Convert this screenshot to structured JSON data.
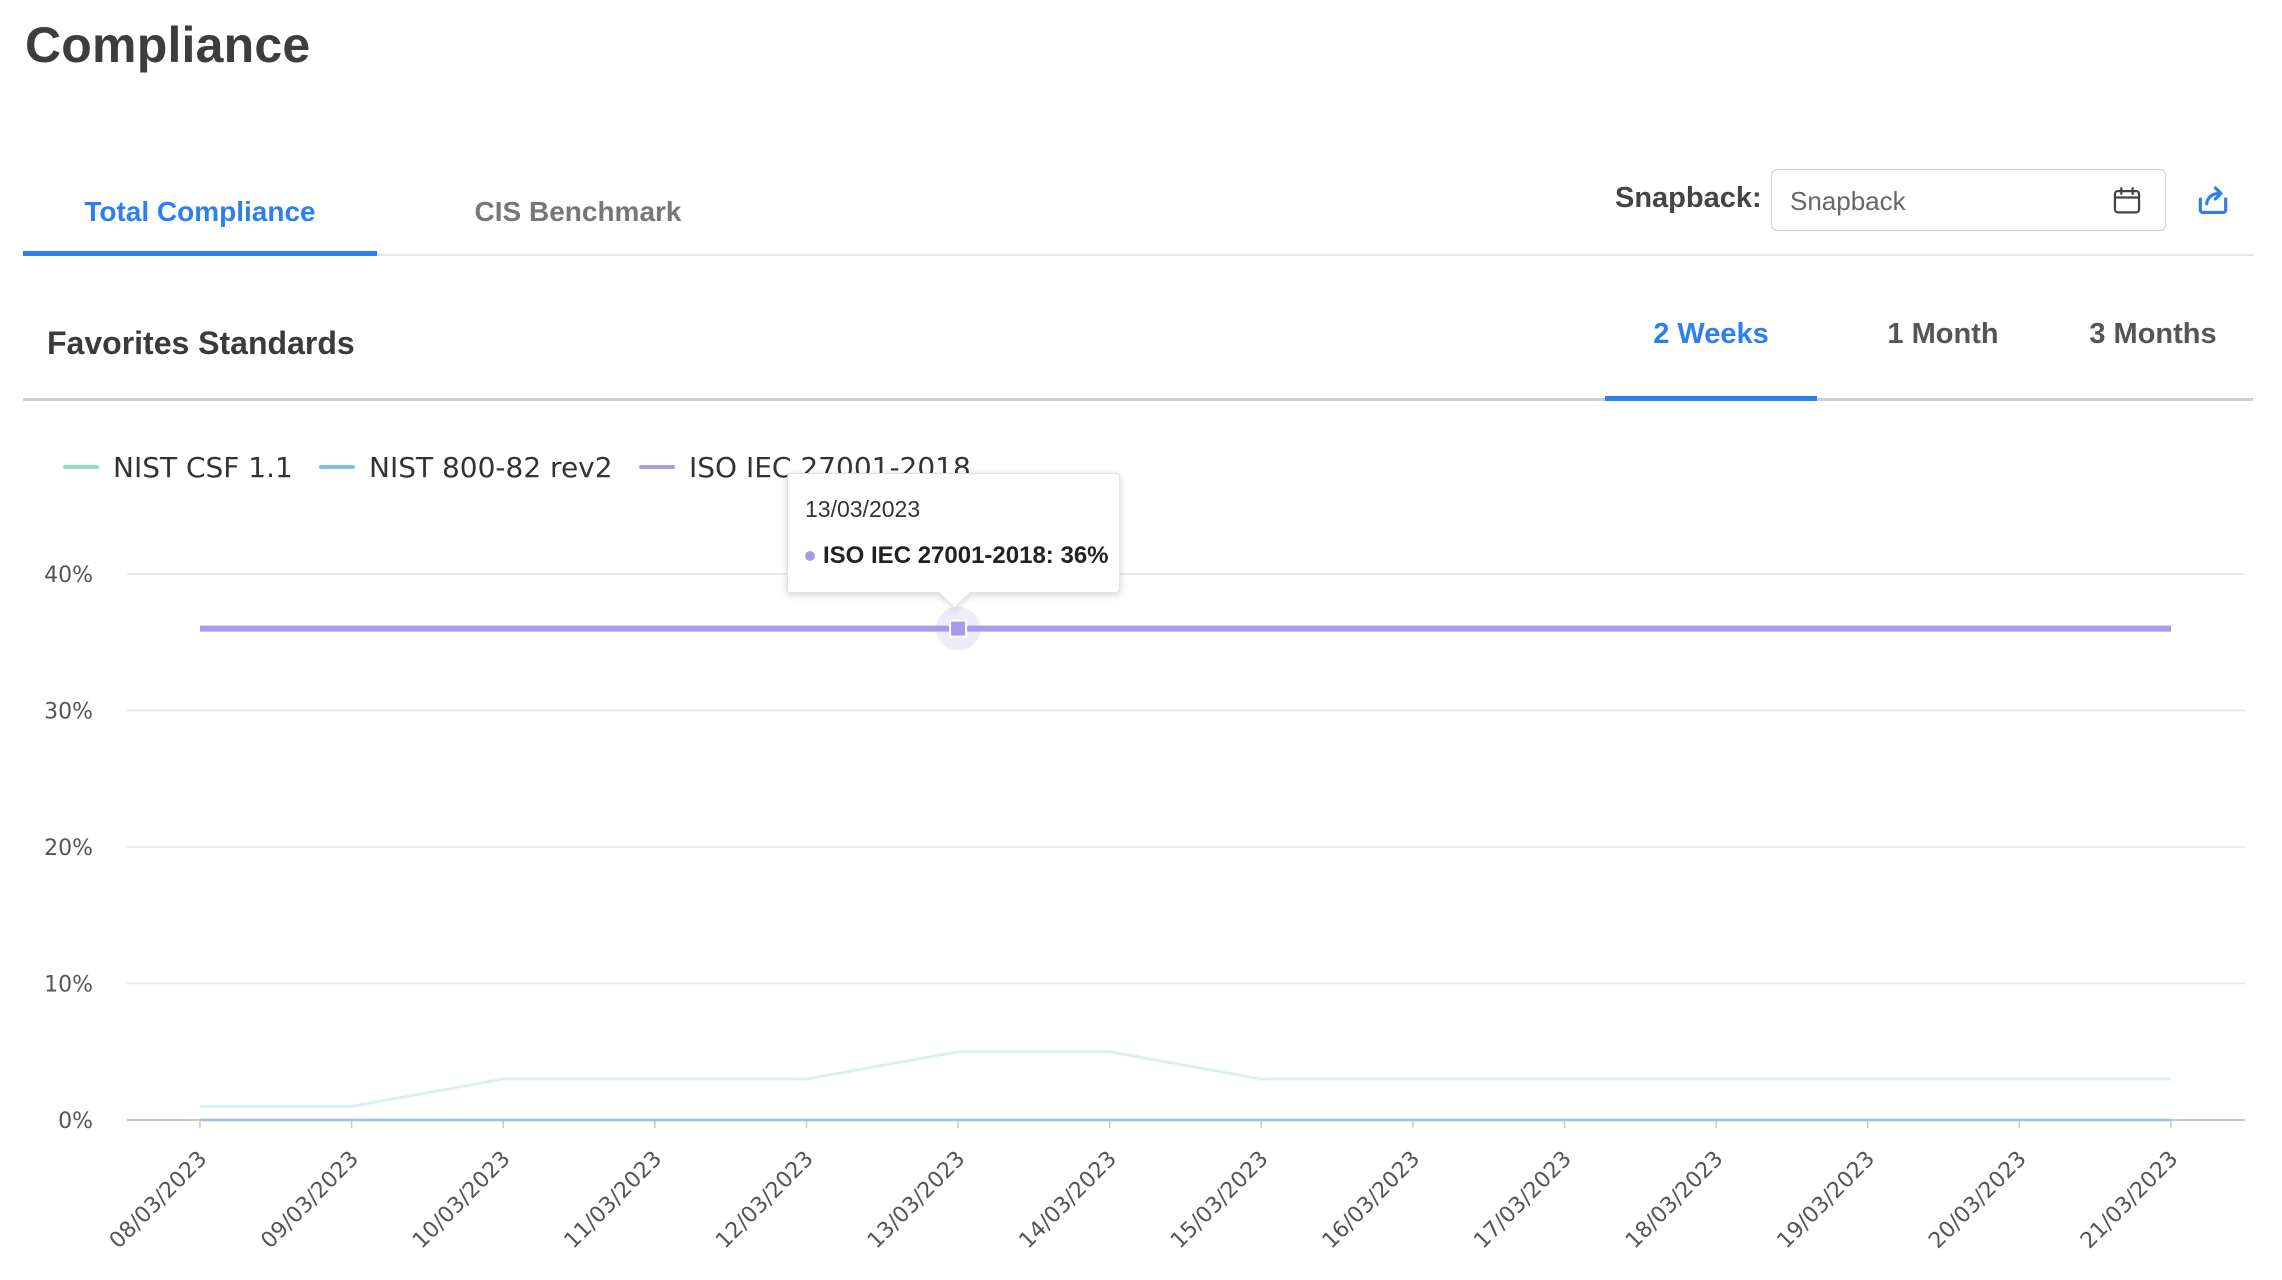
{
  "page": {
    "title": "Compliance"
  },
  "tabs": [
    {
      "label": "Total Compliance",
      "active": true
    },
    {
      "label": "CIS Benchmark",
      "active": false
    }
  ],
  "snapback": {
    "label": "Snapback:",
    "placeholder": "Snapback",
    "icon": "calendar-icon",
    "export_icon": "share-export-icon"
  },
  "favorites": {
    "title": "Favorites Standards"
  },
  "ranges": [
    {
      "label": "2 Weeks",
      "active": true
    },
    {
      "label": "1 Month",
      "active": false
    },
    {
      "label": "3 Months",
      "active": false
    }
  ],
  "tooltip": {
    "date": "13/03/2023",
    "series": "ISO IEC 27001-2018: 36%",
    "color": "#a99af0"
  },
  "chart_data": {
    "type": "line",
    "x": [
      "08/03/2023",
      "09/03/2023",
      "10/03/2023",
      "11/03/2023",
      "12/03/2023",
      "13/03/2023",
      "14/03/2023",
      "15/03/2023",
      "16/03/2023",
      "17/03/2023",
      "18/03/2023",
      "19/03/2023",
      "20/03/2023",
      "21/03/2023"
    ],
    "y_ticks": [
      "0%",
      "10%",
      "20%",
      "30%",
      "40%"
    ],
    "ylim": [
      0,
      40
    ],
    "grid": true,
    "legend_position": "top-left",
    "series": [
      {
        "name": "NIST CSF 1.1",
        "color": "#8fe0c0",
        "values": [
          1,
          1,
          3,
          3,
          3,
          5,
          5,
          3,
          3,
          3,
          3,
          3,
          3,
          3
        ]
      },
      {
        "name": "NIST 800-82 rev2",
        "color": "#86b8f2",
        "values": [
          0,
          0,
          0,
          0,
          0,
          0,
          0,
          0,
          0,
          0,
          0,
          0,
          0,
          0
        ]
      },
      {
        "name": "ISO IEC 27001-2018",
        "color": "#a99af0",
        "values": [
          36,
          36,
          36,
          36,
          36,
          36,
          36,
          36,
          36,
          36,
          36,
          36,
          36,
          36
        ]
      }
    ],
    "highlight_index": 5,
    "highlight_series": 2
  }
}
